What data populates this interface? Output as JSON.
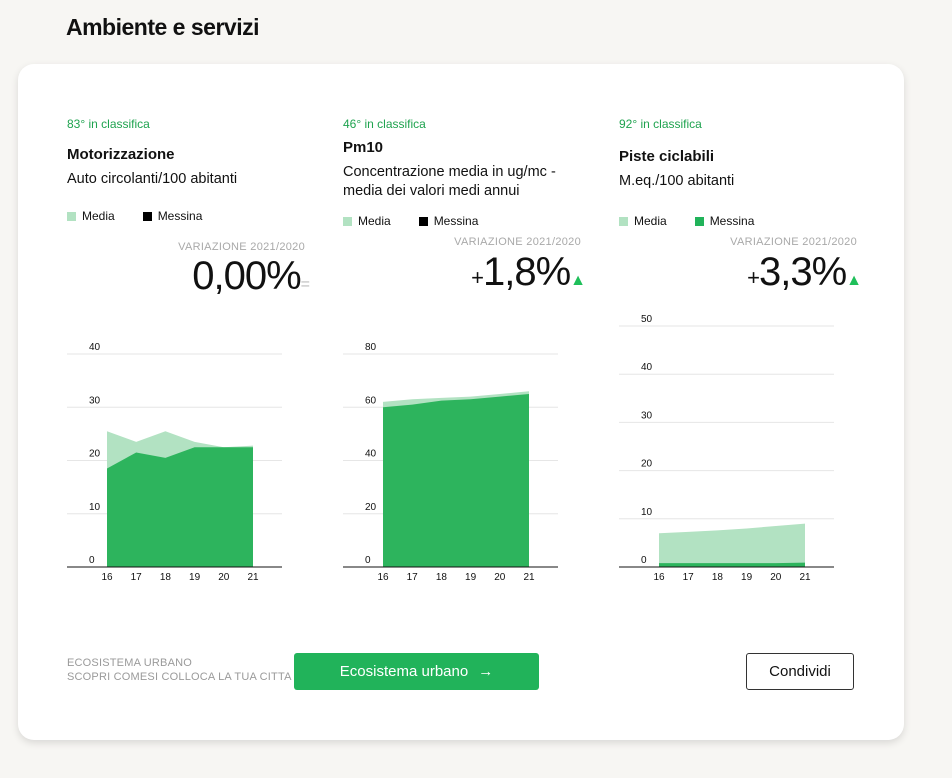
{
  "section": {
    "title": "Ambiente e servizi"
  },
  "colors": {
    "media": "#b2e2c2",
    "messina": "#2db45d",
    "accent": "#21b35a",
    "rank_text": "#1fa34f"
  },
  "metrics": [
    {
      "rank": "83° in classifica",
      "title": "Motorizzazione",
      "subtitle": "Auto circolanti/100 abitanti",
      "legend": {
        "media": "Media",
        "messina": "Messina",
        "messina_swatch": "#000000"
      },
      "variation_label": "VARIAZIONE 2021/2020",
      "variation_sign": "",
      "variation_value": "0,00%",
      "variation_indicator": "=",
      "indicator_type": "flat"
    },
    {
      "rank": "46° in classifica",
      "title": "Pm10",
      "subtitle": "Concentrazione media in ug/mc - media dei valori medi annui",
      "legend": {
        "media": "Media",
        "messina": "Messina",
        "messina_swatch": "#000000"
      },
      "variation_label": "VARIAZIONE 2021/2020",
      "variation_sign": "+",
      "variation_value": "1,8%",
      "variation_indicator": "▲",
      "indicator_type": "up"
    },
    {
      "rank": "92° in classifica",
      "title": "Piste ciclabili",
      "subtitle": "M.eq./100 abitanti",
      "legend": {
        "media": "Media",
        "messina": "Messina",
        "messina_swatch": "#21b35a"
      },
      "variation_label": "VARIAZIONE 2021/2020",
      "variation_sign": "+",
      "variation_value": "3,3%",
      "variation_indicator": "▲",
      "indicator_type": "up"
    }
  ],
  "chart_data": [
    {
      "type": "area",
      "x": [
        "16",
        "17",
        "18",
        "19",
        "20",
        "21"
      ],
      "yticks": [
        0,
        10,
        20,
        30,
        40
      ],
      "ylim": [
        0,
        40
      ],
      "series": [
        {
          "name": "Media",
          "values": [
            25.5,
            23.5,
            25.5,
            23.5,
            22.5,
            22.8
          ]
        },
        {
          "name": "Messina",
          "values": [
            18.5,
            21.5,
            20.5,
            22.5,
            22.5,
            22.5
          ]
        }
      ]
    },
    {
      "type": "area",
      "x": [
        "16",
        "17",
        "18",
        "19",
        "20",
        "21"
      ],
      "yticks": [
        0,
        20,
        40,
        60,
        80
      ],
      "ylim": [
        0,
        80
      ],
      "series": [
        {
          "name": "Media",
          "values": [
            62,
            63,
            63.5,
            64,
            65,
            66
          ]
        },
        {
          "name": "Messina",
          "values": [
            60,
            61,
            62.5,
            63,
            64,
            65
          ]
        }
      ]
    },
    {
      "type": "area",
      "x": [
        "16",
        "17",
        "18",
        "19",
        "20",
        "21"
      ],
      "yticks": [
        0,
        10,
        20,
        30,
        40,
        50
      ],
      "ylim": [
        0,
        50
      ],
      "series": [
        {
          "name": "Media",
          "values": [
            7,
            7.3,
            7.6,
            8,
            8.5,
            9
          ]
        },
        {
          "name": "Messina",
          "values": [
            0.8,
            0.8,
            0.8,
            0.8,
            0.8,
            0.9
          ]
        }
      ]
    }
  ],
  "footer": {
    "note_line1": "ECOSISTEMA URBANO",
    "note_line2": "SCOPRI COMESI COLLOCA LA TUA CITTA",
    "cta_label": "Ecosistema urbano",
    "cta_arrow": "→",
    "share_label": "Condividi"
  }
}
